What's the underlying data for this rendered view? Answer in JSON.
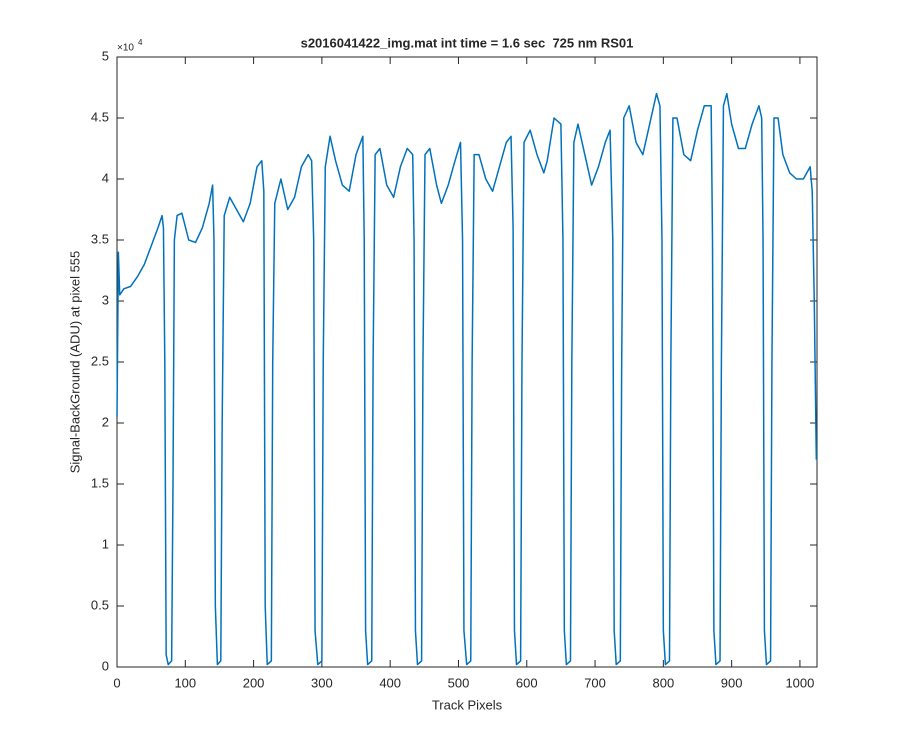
{
  "chart_data": {
    "type": "line",
    "title": "s2016041422_img.mat int time = 1.6 sec  725 nm RS01",
    "xlabel": "Track Pixels",
    "ylabel": "Signal-BackGround (ADU) at pixel 555",
    "y_exponent": {
      "base": "×10",
      "power": "4"
    },
    "color": "#0072bd",
    "xlim": [
      0,
      1025
    ],
    "xticks": [
      0,
      100,
      200,
      300,
      400,
      500,
      600,
      700,
      800,
      900,
      1000
    ],
    "ylim": [
      0,
      5
    ],
    "yticks": [
      0,
      0.5,
      1,
      1.5,
      2,
      2.5,
      3,
      3.5,
      4,
      4.5,
      5
    ],
    "x": [
      0,
      2,
      4,
      10,
      20,
      30,
      40,
      50,
      60,
      66,
      68,
      70,
      72,
      75,
      80,
      82,
      84,
      88,
      95,
      105,
      115,
      125,
      135,
      140,
      142,
      144,
      147,
      152,
      154,
      157,
      165,
      175,
      185,
      195,
      205,
      212,
      215,
      217,
      220,
      226,
      228,
      231,
      240,
      250,
      260,
      270,
      280,
      285,
      288,
      290,
      294,
      300,
      302,
      305,
      312,
      320,
      330,
      340,
      350,
      360,
      362,
      364,
      367,
      373,
      375,
      378,
      385,
      395,
      405,
      415,
      425,
      433,
      435,
      437,
      440,
      446,
      448,
      451,
      458,
      468,
      475,
      485,
      495,
      503,
      506,
      508,
      512,
      518,
      520,
      523,
      530,
      540,
      550,
      560,
      570,
      577,
      580,
      582,
      585,
      591,
      593,
      596,
      605,
      615,
      625,
      630,
      640,
      650,
      653,
      655,
      658,
      664,
      666,
      669,
      675,
      685,
      695,
      705,
      715,
      722,
      726,
      728,
      731,
      737,
      739,
      742,
      750,
      760,
      770,
      780,
      790,
      795,
      798,
      800,
      803,
      809,
      811,
      814,
      820,
      830,
      840,
      850,
      860,
      870,
      872,
      874,
      877,
      883,
      885,
      888,
      893,
      900,
      910,
      920,
      930,
      940,
      944,
      946,
      948,
      951,
      957,
      959,
      962,
      968,
      975,
      985,
      995,
      1005,
      1010,
      1015,
      1018,
      1021,
      1024
    ],
    "values": [
      2.05,
      3.4,
      3.05,
      3.1,
      3.12,
      3.2,
      3.3,
      3.45,
      3.6,
      3.7,
      3.6,
      2.5,
      0.1,
      0.02,
      0.05,
      1.5,
      3.5,
      3.7,
      3.72,
      3.5,
      3.48,
      3.6,
      3.8,
      3.95,
      3.5,
      0.5,
      0.02,
      0.05,
      2.0,
      3.7,
      3.85,
      3.75,
      3.65,
      3.8,
      4.1,
      4.15,
      3.9,
      0.5,
      0.02,
      0.05,
      2.5,
      3.8,
      4.0,
      3.75,
      3.85,
      4.1,
      4.2,
      4.15,
      3.5,
      0.3,
      0.02,
      0.05,
      2.5,
      4.1,
      4.35,
      4.15,
      3.95,
      3.9,
      4.2,
      4.35,
      3.5,
      0.3,
      0.02,
      0.05,
      2.5,
      4.2,
      4.25,
      3.95,
      3.85,
      4.1,
      4.25,
      4.2,
      3.5,
      0.3,
      0.02,
      0.05,
      2.5,
      4.2,
      4.25,
      3.95,
      3.8,
      3.95,
      4.15,
      4.3,
      3.5,
      0.3,
      0.02,
      0.05,
      2.5,
      4.2,
      4.2,
      4.0,
      3.9,
      4.1,
      4.3,
      4.35,
      3.6,
      0.3,
      0.02,
      0.05,
      2.5,
      4.3,
      4.4,
      4.2,
      4.05,
      4.15,
      4.5,
      4.45,
      3.5,
      0.3,
      0.02,
      0.05,
      2.5,
      4.3,
      4.45,
      4.2,
      3.95,
      4.1,
      4.3,
      4.4,
      3.5,
      0.3,
      0.02,
      0.05,
      2.5,
      4.5,
      4.6,
      4.3,
      4.2,
      4.45,
      4.7,
      4.6,
      3.5,
      0.3,
      0.02,
      0.05,
      2.5,
      4.5,
      4.5,
      4.2,
      4.15,
      4.4,
      4.6,
      4.6,
      3.5,
      0.3,
      0.02,
      0.05,
      2.5,
      4.6,
      4.7,
      4.45,
      4.25,
      4.25,
      4.45,
      4.6,
      4.5,
      3.5,
      0.3,
      0.02,
      0.05,
      2.5,
      4.5,
      4.5,
      4.2,
      4.05,
      4.0,
      4.0,
      4.05,
      4.1,
      3.9,
      3.0,
      1.7
    ]
  }
}
